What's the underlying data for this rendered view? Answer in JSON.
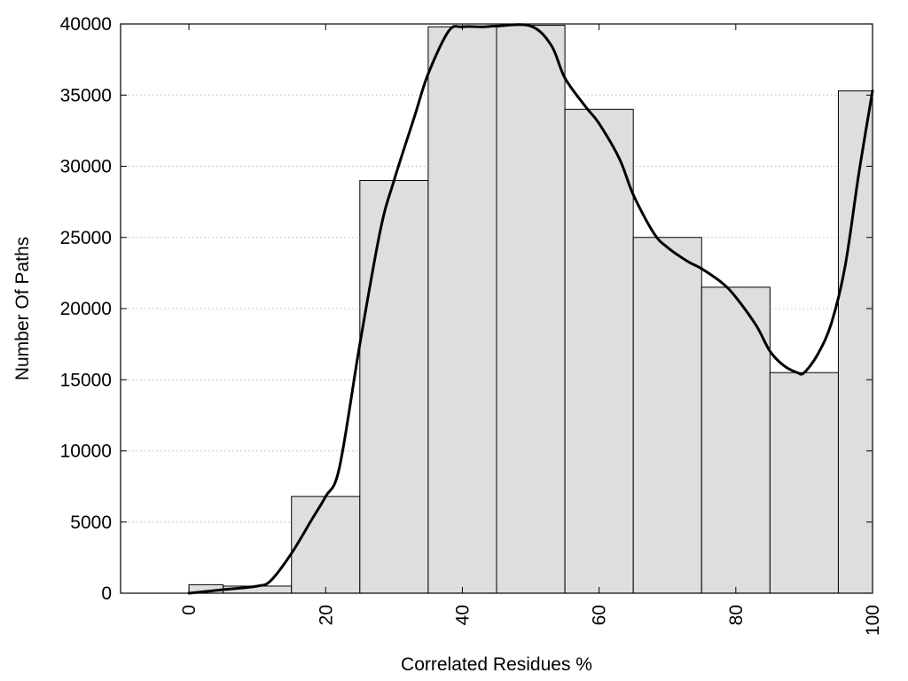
{
  "chart_data": {
    "type": "bar",
    "title": "",
    "xlabel": "Correlated Residues %",
    "ylabel": "Number Of Paths",
    "xlim": [
      -10,
      100
    ],
    "ylim": [
      0,
      40000
    ],
    "xticks": [
      "0",
      "20",
      "40",
      "60",
      "80",
      "100"
    ],
    "yticks": [
      "0",
      "5000",
      "10000",
      "15000",
      "20000",
      "25000",
      "30000",
      "35000",
      "40000"
    ],
    "grid": true,
    "legend": "none",
    "bar_fill": "#dedede",
    "bar_stroke": "#000000",
    "curve_color": "#000000",
    "bins": [
      {
        "start": 0,
        "end": 5,
        "value": 600
      },
      {
        "start": 5,
        "end": 15,
        "value": 500
      },
      {
        "start": 15,
        "end": 25,
        "value": 6800
      },
      {
        "start": 25,
        "end": 35,
        "value": 29000
      },
      {
        "start": 35,
        "end": 45,
        "value": 39800
      },
      {
        "start": 45,
        "end": 55,
        "value": 39900
      },
      {
        "start": 55,
        "end": 65,
        "value": 34000
      },
      {
        "start": 65,
        "end": 75,
        "value": 25000
      },
      {
        "start": 75,
        "end": 85,
        "value": 21500
      },
      {
        "start": 85,
        "end": 95,
        "value": 15500
      },
      {
        "start": 95,
        "end": 100,
        "value": 35300
      }
    ],
    "curve": {
      "x": [
        0,
        5,
        10,
        12,
        15,
        18,
        20,
        22,
        25,
        28,
        30,
        33,
        35,
        38,
        40,
        43,
        45,
        50,
        53,
        55,
        58,
        60,
        63,
        65,
        68,
        70,
        73,
        75,
        78,
        80,
        83,
        85,
        87,
        89,
        90,
        92,
        94,
        96,
        98,
        100
      ],
      "y": [
        0,
        250,
        500,
        900,
        2800,
        5200,
        6800,
        8800,
        17500,
        25500,
        29000,
        33500,
        36500,
        39500,
        39800,
        39800,
        39850,
        39850,
        38500,
        36200,
        34200,
        33000,
        30500,
        28000,
        25300,
        24300,
        23300,
        22800,
        21800,
        20800,
        18800,
        17000,
        16000,
        15500,
        15500,
        16800,
        19000,
        23000,
        29500,
        35300
      ]
    }
  }
}
